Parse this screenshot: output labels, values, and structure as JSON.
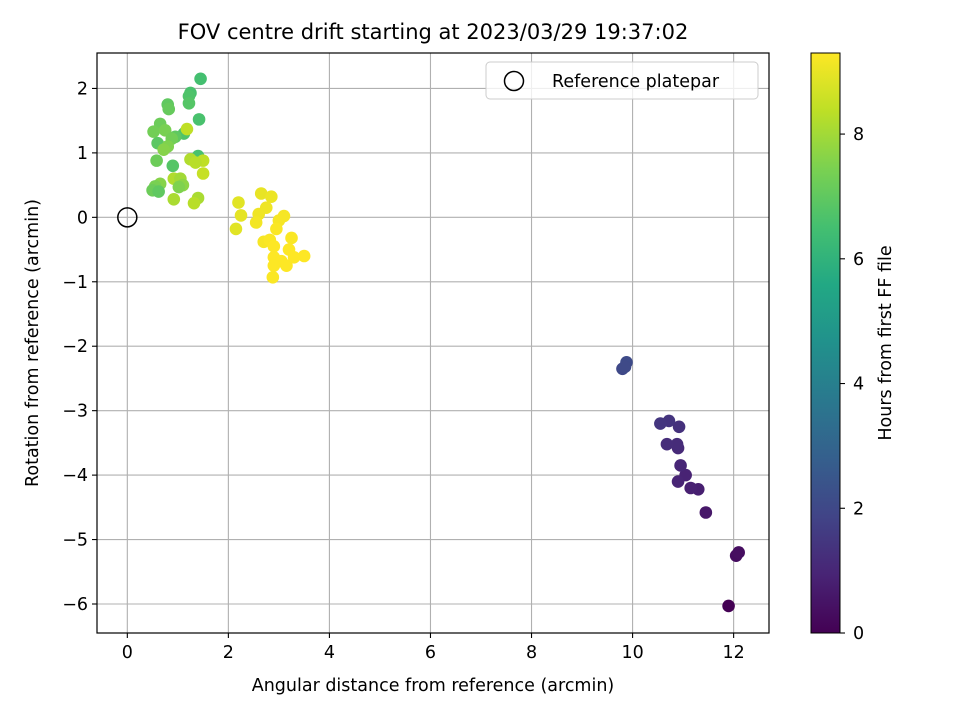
{
  "chart_data": {
    "type": "scatter",
    "title": "FOV centre drift starting at 2023/03/29 19:37:02",
    "xlabel": "Angular distance from reference (arcmin)",
    "ylabel": "Rotation from reference (arcmin)",
    "xlim": [
      -0.6,
      12.7
    ],
    "ylim": [
      -6.45,
      2.55
    ],
    "xticks": [
      0,
      2,
      4,
      6,
      8,
      10,
      12
    ],
    "xtick_labels": [
      "0",
      "2",
      "4",
      "6",
      "8",
      "10",
      "12"
    ],
    "yticks": [
      2,
      1,
      0,
      -1,
      -2,
      -3,
      -4,
      -5,
      -6
    ],
    "ytick_labels": [
      "2",
      "1",
      "0",
      "−1",
      "−2",
      "−3",
      "−4",
      "−5",
      "−6"
    ],
    "grid": true,
    "legend": {
      "position": "top-right",
      "entries": [
        "Reference platepar"
      ]
    },
    "reference_point": {
      "x": 0,
      "y": 0,
      "label": "Reference platepar"
    },
    "colorbar": {
      "label": "Hours from first FF file",
      "colormap": "viridis",
      "range": [
        0,
        9.3
      ],
      "ticks": [
        0,
        2,
        4,
        6,
        8
      ],
      "tick_labels": [
        "0",
        "2",
        "4",
        "6",
        "8"
      ]
    },
    "points": [
      {
        "x": 11.9,
        "y": -6.03,
        "t": 0.0
      },
      {
        "x": 12.05,
        "y": -5.25,
        "t": 0.3
      },
      {
        "x": 12.1,
        "y": -5.2,
        "t": 0.35
      },
      {
        "x": 11.45,
        "y": -4.58,
        "t": 0.6
      },
      {
        "x": 11.3,
        "y": -4.22,
        "t": 0.8
      },
      {
        "x": 11.15,
        "y": -4.2,
        "t": 0.85
      },
      {
        "x": 11.05,
        "y": -4.0,
        "t": 0.9
      },
      {
        "x": 10.9,
        "y": -4.1,
        "t": 0.95
      },
      {
        "x": 10.95,
        "y": -3.85,
        "t": 1.0
      },
      {
        "x": 10.9,
        "y": -3.58,
        "t": 1.1
      },
      {
        "x": 10.88,
        "y": -3.52,
        "t": 1.15
      },
      {
        "x": 10.68,
        "y": -3.52,
        "t": 1.2
      },
      {
        "x": 10.92,
        "y": -3.25,
        "t": 1.3
      },
      {
        "x": 10.72,
        "y": -3.16,
        "t": 1.4
      },
      {
        "x": 10.55,
        "y": -3.2,
        "t": 1.45
      },
      {
        "x": 9.8,
        "y": -2.35,
        "t": 2.0
      },
      {
        "x": 9.88,
        "y": -2.25,
        "t": 2.1
      },
      {
        "x": 9.85,
        "y": -2.32,
        "t": 2.05
      },
      {
        "x": 1.45,
        "y": 2.15,
        "t": 6.5
      },
      {
        "x": 1.25,
        "y": 1.93,
        "t": 6.6
      },
      {
        "x": 1.22,
        "y": 1.88,
        "t": 6.7
      },
      {
        "x": 1.22,
        "y": 1.77,
        "t": 6.8
      },
      {
        "x": 0.8,
        "y": 1.75,
        "t": 7.0
      },
      {
        "x": 0.82,
        "y": 1.68,
        "t": 7.1
      },
      {
        "x": 1.42,
        "y": 1.52,
        "t": 6.6
      },
      {
        "x": 0.65,
        "y": 1.45,
        "t": 7.2
      },
      {
        "x": 0.52,
        "y": 1.33,
        "t": 7.3
      },
      {
        "x": 0.75,
        "y": 1.35,
        "t": 7.4
      },
      {
        "x": 1.12,
        "y": 1.3,
        "t": 6.7
      },
      {
        "x": 1.18,
        "y": 1.37,
        "t": 8.4
      },
      {
        "x": 0.95,
        "y": 1.25,
        "t": 7.0
      },
      {
        "x": 0.88,
        "y": 1.22,
        "t": 7.3
      },
      {
        "x": 0.6,
        "y": 1.15,
        "t": 6.9
      },
      {
        "x": 0.8,
        "y": 1.1,
        "t": 7.5
      },
      {
        "x": 0.72,
        "y": 1.05,
        "t": 7.6
      },
      {
        "x": 0.58,
        "y": 0.88,
        "t": 7.2
      },
      {
        "x": 0.9,
        "y": 0.8,
        "t": 6.8
      },
      {
        "x": 1.4,
        "y": 0.95,
        "t": 6.6
      },
      {
        "x": 1.25,
        "y": 0.9,
        "t": 8.2
      },
      {
        "x": 1.5,
        "y": 0.88,
        "t": 8.4
      },
      {
        "x": 1.35,
        "y": 0.85,
        "t": 8.3
      },
      {
        "x": 1.5,
        "y": 0.68,
        "t": 8.5
      },
      {
        "x": 0.92,
        "y": 0.6,
        "t": 8.2
      },
      {
        "x": 1.05,
        "y": 0.6,
        "t": 8.0
      },
      {
        "x": 1.1,
        "y": 0.5,
        "t": 7.7
      },
      {
        "x": 0.65,
        "y": 0.52,
        "t": 7.6
      },
      {
        "x": 0.55,
        "y": 0.48,
        "t": 7.4
      },
      {
        "x": 0.5,
        "y": 0.42,
        "t": 7.2
      },
      {
        "x": 0.62,
        "y": 0.4,
        "t": 7.0
      },
      {
        "x": 1.02,
        "y": 0.47,
        "t": 7.5
      },
      {
        "x": 1.4,
        "y": 0.3,
        "t": 8.1
      },
      {
        "x": 1.32,
        "y": 0.22,
        "t": 8.3
      },
      {
        "x": 0.92,
        "y": 0.28,
        "t": 8.1
      },
      {
        "x": 2.2,
        "y": 0.23,
        "t": 8.9
      },
      {
        "x": 2.25,
        "y": 0.03,
        "t": 8.95
      },
      {
        "x": 2.15,
        "y": -0.18,
        "t": 8.9
      },
      {
        "x": 2.65,
        "y": 0.37,
        "t": 9.0
      },
      {
        "x": 2.85,
        "y": 0.32,
        "t": 9.05
      },
      {
        "x": 2.75,
        "y": 0.15,
        "t": 9.1
      },
      {
        "x": 2.6,
        "y": 0.05,
        "t": 9.1
      },
      {
        "x": 2.55,
        "y": -0.08,
        "t": 9.15
      },
      {
        "x": 3.1,
        "y": 0.02,
        "t": 9.2
      },
      {
        "x": 3.0,
        "y": -0.05,
        "t": 9.2
      },
      {
        "x": 2.95,
        "y": -0.18,
        "t": 9.25
      },
      {
        "x": 2.7,
        "y": -0.38,
        "t": 9.2
      },
      {
        "x": 2.82,
        "y": -0.35,
        "t": 9.25
      },
      {
        "x": 2.9,
        "y": -0.45,
        "t": 9.3
      },
      {
        "x": 3.25,
        "y": -0.32,
        "t": 9.25
      },
      {
        "x": 3.2,
        "y": -0.5,
        "t": 9.3
      },
      {
        "x": 2.9,
        "y": -0.62,
        "t": 9.3
      },
      {
        "x": 3.05,
        "y": -0.68,
        "t": 9.3
      },
      {
        "x": 3.15,
        "y": -0.75,
        "t": 9.3
      },
      {
        "x": 2.9,
        "y": -0.75,
        "t": 9.3
      },
      {
        "x": 2.88,
        "y": -0.93,
        "t": 9.25
      },
      {
        "x": 3.5,
        "y": -0.6,
        "t": 9.3
      },
      {
        "x": 3.3,
        "y": -0.62,
        "t": 9.3
      }
    ]
  }
}
